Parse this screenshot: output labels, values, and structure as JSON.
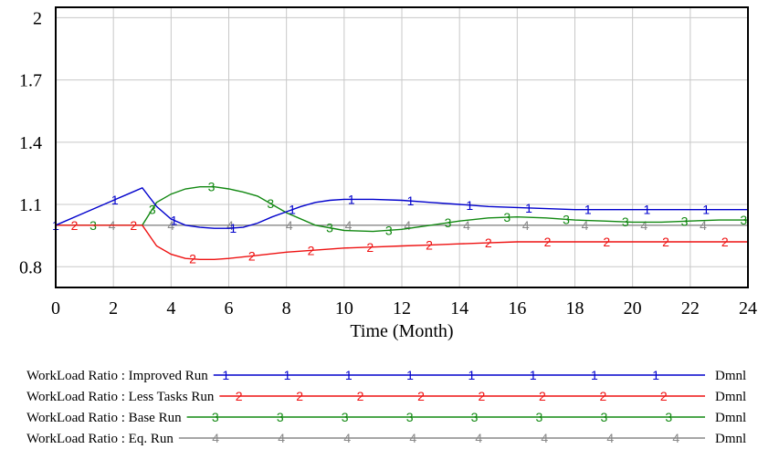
{
  "chart_data": {
    "type": "line",
    "xlabel": "Time (Month)",
    "ylabel": "",
    "xlim": [
      0,
      24
    ],
    "ylim": [
      0.7,
      2.05
    ],
    "x_ticks": [
      "0",
      "2",
      "4",
      "6",
      "8",
      "10",
      "12",
      "14",
      "16",
      "18",
      "20",
      "22",
      "24"
    ],
    "y_ticks": [
      "2",
      "1.7",
      "1.4",
      "1.1",
      "0.8"
    ],
    "grid": true,
    "legend_position": "bottom",
    "unit": "Dmnl",
    "series": [
      {
        "name": "WorkLoad Ratio : Improved Run",
        "marker": "1",
        "color": "#0000cc",
        "x": [
          0,
          1,
          2,
          2.5,
          3,
          3.5,
          4,
          4.5,
          5,
          5.5,
          6,
          6.5,
          7,
          7.5,
          8,
          8.5,
          9,
          9.5,
          10,
          10.5,
          11,
          12,
          13,
          14,
          15,
          16,
          17,
          18,
          19,
          20,
          21,
          22,
          23,
          24
        ],
        "y": [
          1.0,
          1.06,
          1.12,
          1.15,
          1.18,
          1.09,
          1.03,
          1.0,
          0.99,
          0.985,
          0.985,
          0.99,
          1.01,
          1.04,
          1.065,
          1.09,
          1.11,
          1.12,
          1.125,
          1.125,
          1.125,
          1.12,
          1.11,
          1.1,
          1.09,
          1.085,
          1.08,
          1.075,
          1.075,
          1.075,
          1.075,
          1.075,
          1.075,
          1.075
        ]
      },
      {
        "name": "WorkLoad Ratio : Less Tasks Run",
        "marker": "2",
        "color": "#ee1111",
        "x": [
          0,
          1,
          2,
          3,
          3.5,
          4,
          4.5,
          5,
          5.5,
          6,
          7,
          8,
          9,
          10,
          11,
          12,
          13,
          14,
          15,
          16,
          17,
          18,
          19,
          20,
          21,
          22,
          23,
          24
        ],
        "y": [
          1.0,
          1.0,
          1.0,
          1.0,
          0.9,
          0.86,
          0.84,
          0.835,
          0.835,
          0.84,
          0.855,
          0.87,
          0.88,
          0.89,
          0.895,
          0.9,
          0.905,
          0.91,
          0.915,
          0.92,
          0.92,
          0.92,
          0.92,
          0.92,
          0.92,
          0.92,
          0.92,
          0.92
        ]
      },
      {
        "name": "WorkLoad Ratio : Base Run",
        "marker": "3",
        "color": "#118811",
        "x": [
          0,
          1,
          2,
          3,
          3.5,
          4,
          4.5,
          5,
          5.5,
          6,
          6.5,
          7,
          8,
          9,
          10,
          11,
          12,
          13,
          14,
          15,
          16,
          17,
          18,
          19,
          20,
          21,
          22,
          23,
          24
        ],
        "y": [
          1.0,
          1.0,
          1.0,
          1.0,
          1.11,
          1.15,
          1.175,
          1.185,
          1.185,
          1.175,
          1.16,
          1.14,
          1.06,
          1.0,
          0.975,
          0.97,
          0.98,
          1.0,
          1.02,
          1.035,
          1.04,
          1.035,
          1.025,
          1.02,
          1.015,
          1.015,
          1.02,
          1.025,
          1.025
        ]
      },
      {
        "name": "WorkLoad Ratio : Eq. Run",
        "marker": "4",
        "color": "#888888",
        "x": [
          0,
          24
        ],
        "y": [
          1.0,
          1.0
        ]
      }
    ]
  }
}
